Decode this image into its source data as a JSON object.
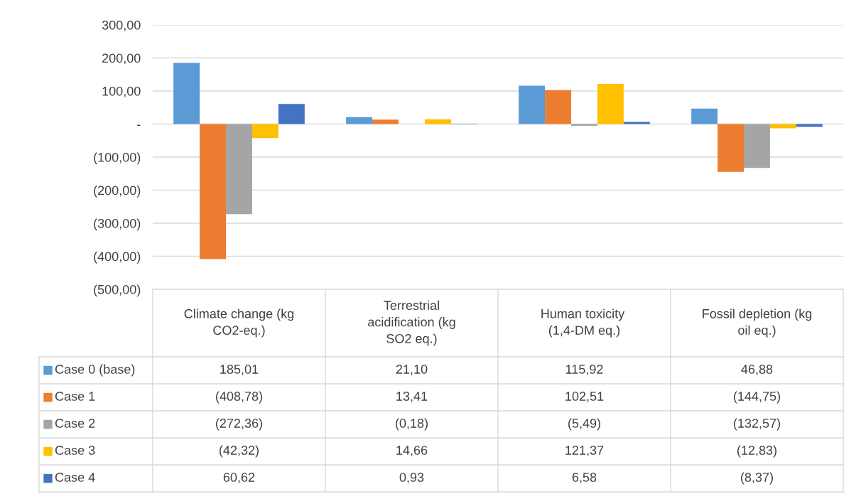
{
  "chart_data": {
    "type": "bar",
    "categories": [
      "Climate change (kg CO2-eq.)",
      "Terrestrial acidification (kg SO2 eq.)",
      "Human toxicity  (1,4-DM eq.)",
      "Fossil depletion (kg oil eq.)"
    ],
    "series": [
      {
        "name": "Case 0 (base)",
        "color": "#5b9bd5",
        "values": [
          185.01,
          21.1,
          115.92,
          46.88
        ],
        "value_labels": [
          "185,01",
          "21,10",
          "115,92",
          "46,88"
        ]
      },
      {
        "name": "Case 1",
        "color": "#ed7d31",
        "values": [
          -408.78,
          13.41,
          102.51,
          -144.75
        ],
        "value_labels": [
          "(408,78)",
          "13,41",
          "102,51",
          "(144,75)"
        ]
      },
      {
        "name": "Case 2",
        "color": "#a5a5a5",
        "values": [
          -272.36,
          -0.18,
          -5.49,
          -132.57
        ],
        "value_labels": [
          "(272,36)",
          "(0,18)",
          "(5,49)",
          "(132,57)"
        ]
      },
      {
        "name": "Case 3",
        "color": "#ffc000",
        "values": [
          -42.32,
          14.66,
          121.37,
          -12.83
        ],
        "value_labels": [
          "(42,32)",
          "14,66",
          "121,37",
          "(12,83)"
        ]
      },
      {
        "name": "Case 4",
        "color": "#4472c4",
        "values": [
          60.62,
          0.93,
          6.58,
          -8.37
        ],
        "value_labels": [
          "60,62",
          "0,93",
          "6,58",
          "(8,37)"
        ]
      }
    ],
    "ylim": [
      -500,
      300
    ],
    "yticks": [
      {
        "value": 300,
        "label": "300,00"
      },
      {
        "value": 200,
        "label": "200,00"
      },
      {
        "value": 100,
        "label": "100,00"
      },
      {
        "value": 0,
        "label": "-"
      },
      {
        "value": -100,
        "label": "(100,00)"
      },
      {
        "value": -200,
        "label": "(200,00)"
      },
      {
        "value": -300,
        "label": "(300,00)"
      },
      {
        "value": -400,
        "label": "(400,00)"
      },
      {
        "value": -500,
        "label": "(500,00)"
      }
    ],
    "grid": "y",
    "legend": "bottom left"
  }
}
